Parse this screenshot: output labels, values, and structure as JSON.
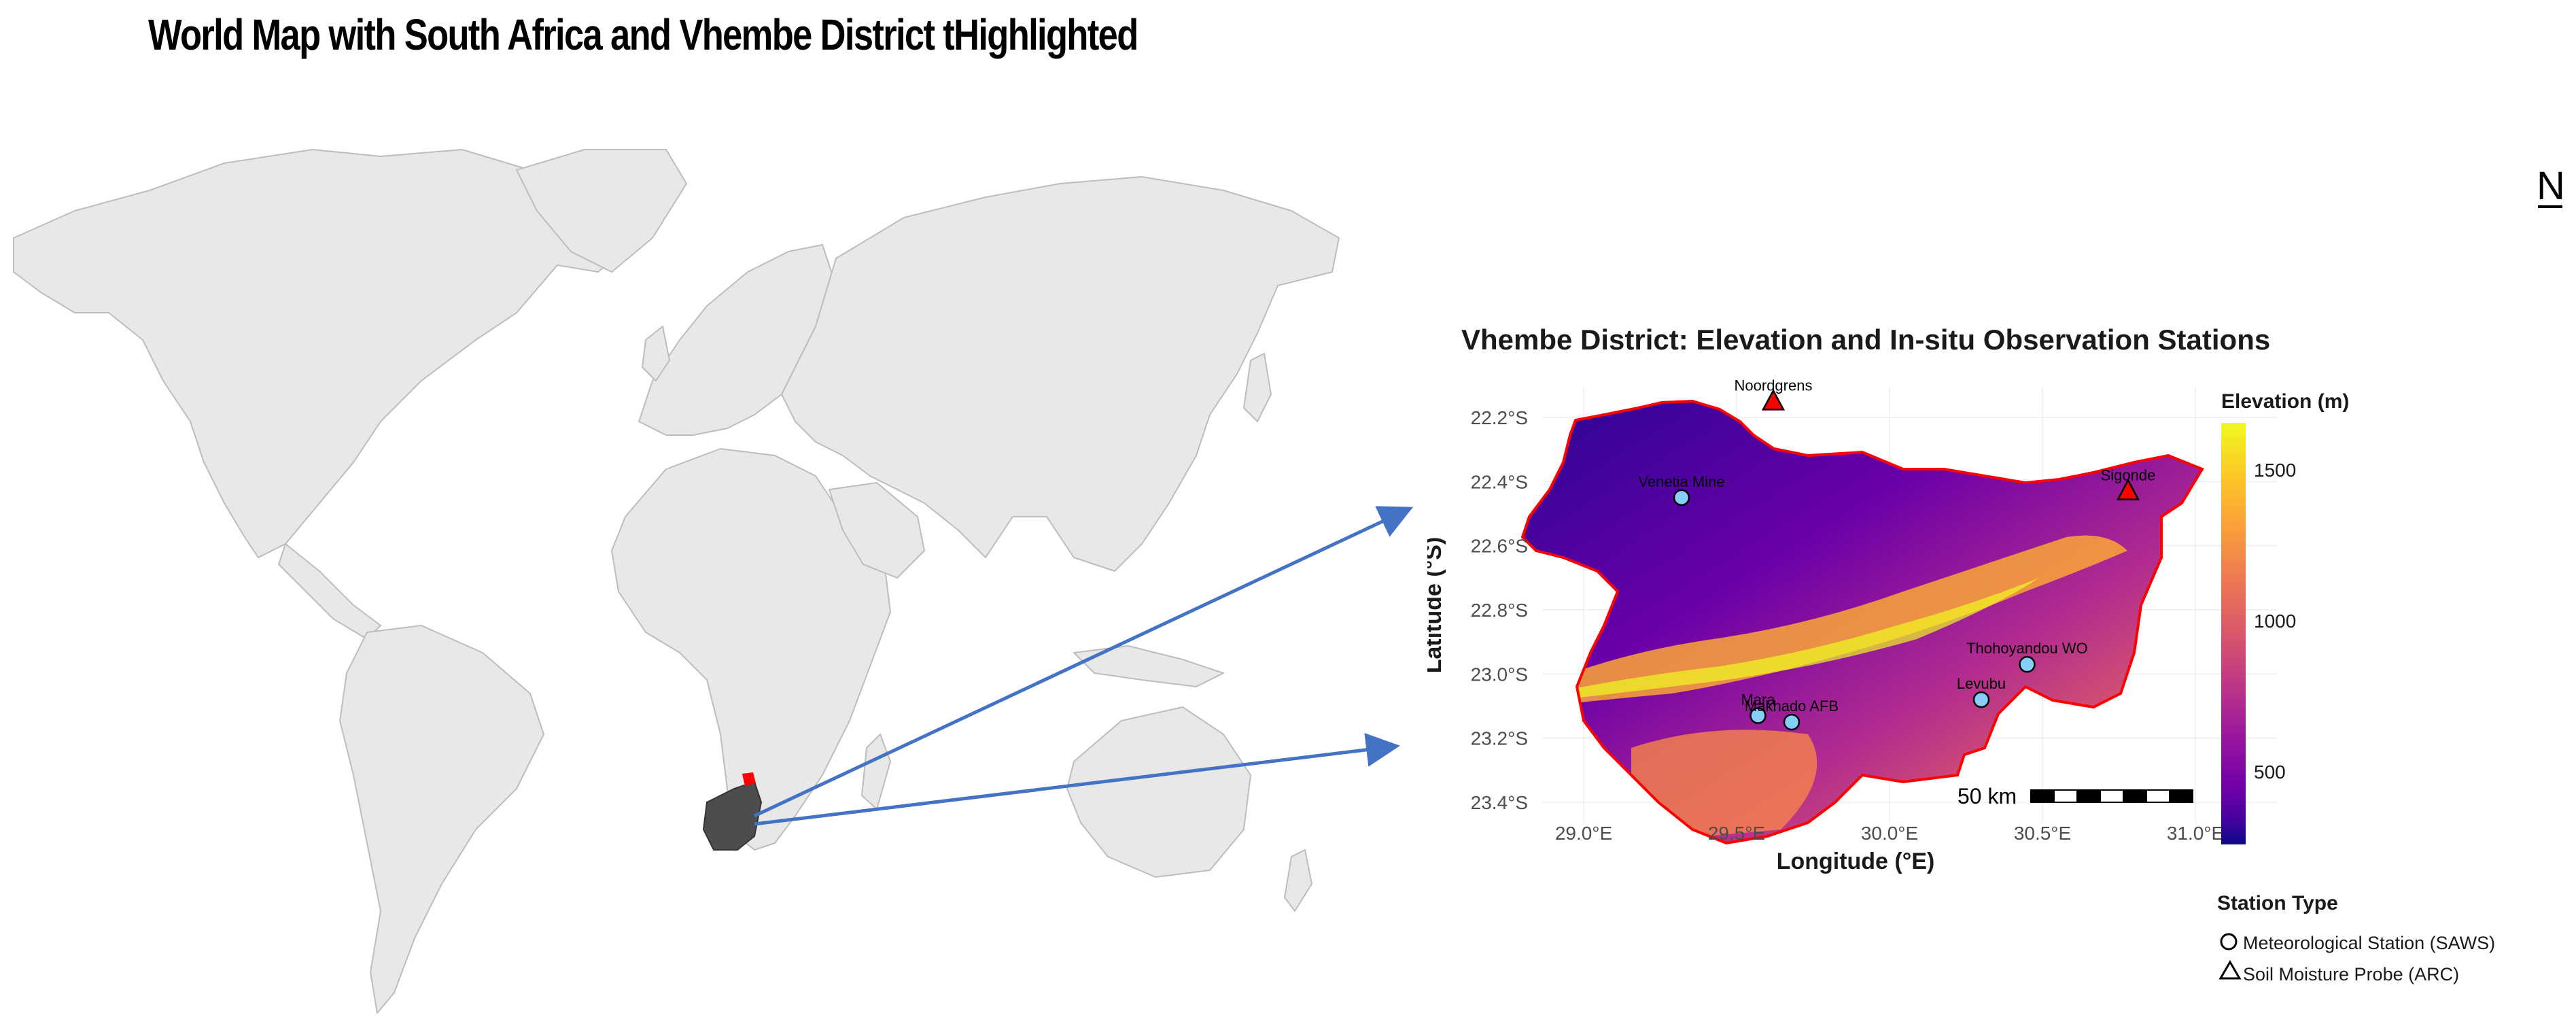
{
  "title": "World Map with South Africa and Vhembe District tHighlighted",
  "north_arrow": "N",
  "vhembe_panel": {
    "title": "Vhembe District: Elevation and In-situ Observation Stations",
    "xlabel": "Longitude (°E)",
    "ylabel": "Latitude (°S)",
    "x_ticks": [
      "29.0°E",
      "29.5°E",
      "30.0°E",
      "30.5°E",
      "31.0°E"
    ],
    "y_ticks": [
      "22.2°S",
      "22.4°S",
      "22.6°S",
      "22.8°S",
      "23.0°S",
      "23.2°S",
      "23.4°S"
    ],
    "scale_bar": "50 km",
    "elevation_legend": {
      "title": "Elevation (m)",
      "ticks": [
        "1500",
        "1000",
        "500"
      ]
    },
    "station_legend": {
      "title": "Station Type",
      "items": [
        {
          "symbol": "circle",
          "label": "Meteorological Station (SAWS)"
        },
        {
          "symbol": "triangle",
          "label": "Soil Moisture Probe (ARC)"
        }
      ]
    },
    "stations": [
      {
        "name": "Noordgrens",
        "lon": 29.62,
        "lat": -22.15,
        "type": "triangle"
      },
      {
        "name": "Venetia Mine",
        "lon": 29.32,
        "lat": -22.45,
        "type": "circle"
      },
      {
        "name": "Sigonde",
        "lon": 30.78,
        "lat": -22.43,
        "type": "triangle"
      },
      {
        "name": "Thohoyandou WO",
        "lon": 30.45,
        "lat": -22.97,
        "type": "circle"
      },
      {
        "name": "Levubu",
        "lon": 30.3,
        "lat": -23.08,
        "type": "circle"
      },
      {
        "name": "Mara",
        "lon": 29.57,
        "lat": -23.13,
        "type": "circle"
      },
      {
        "name": "Makhado AFB",
        "lon": 29.68,
        "lat": -23.15,
        "type": "circle"
      }
    ]
  },
  "colors": {
    "land": "#e8e8e8",
    "border": "#bbbbbb",
    "south_africa": "#4d4d4d",
    "vhembe": "#ff0000",
    "arrow": "#4472c4",
    "station_fill": "#87cefa",
    "probe_fill": "#ff0000"
  }
}
